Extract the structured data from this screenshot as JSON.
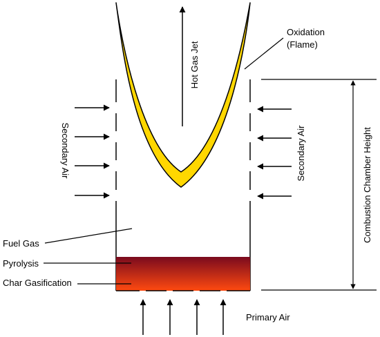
{
  "labels": {
    "hot_gas_jet": "Hot Gas Jet",
    "oxidation_line1": "Oxidation",
    "oxidation_line2": "(Flame)",
    "secondary_air_left": "Secondary Air",
    "secondary_air_right": "Secondary Air",
    "combustion_chamber_height": "Combustion Chamber Height",
    "fuel_gas": "Fuel Gas",
    "pyrolysis": "Pyrolysis",
    "char_gasification": "Char Gasification",
    "primary_air": "Primary Air"
  },
  "colors": {
    "flame_fill": "#FFD700",
    "char_bed_top": "#7A0A1E",
    "char_bed_bottom": "#FF4A10",
    "line": "#000000"
  }
}
